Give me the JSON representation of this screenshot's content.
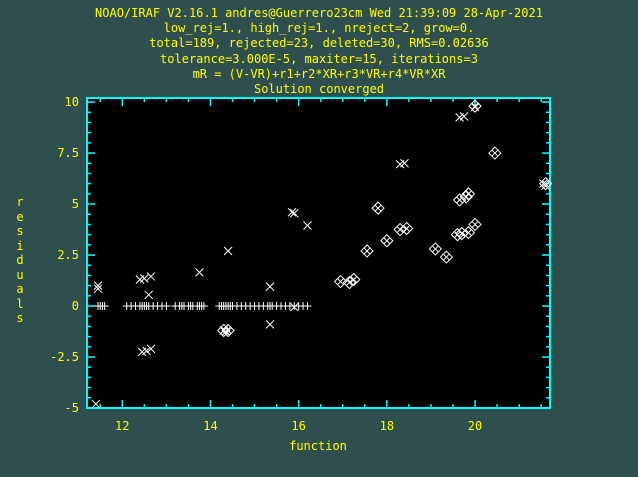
{
  "window": {
    "header_lines": [
      "NOAO/IRAF V2.16.1 andres@Guerrero23cm Wed 21:39:09 28-Apr-2021",
      "low_rej=1., high_rej=1., nreject=2, grow=0.",
      "total=189, rejected=23, deleted=30, RMS=0.02636",
      "tolerance=3.000E-5, maxiter=15, iterations=3",
      "mR = (V-VR)+r1+r2*XR+r3*VR+r4*VR*XR",
      "Solution converged"
    ]
  },
  "colors": {
    "background": "#2f4f4f",
    "frame": "#00ffff",
    "text": "#ffff00",
    "points": "#ffffff",
    "plot_bg": "#000000"
  },
  "chart_data": {
    "type": "scatter",
    "xlabel": "function",
    "ylabel": "residuals",
    "xlim": [
      11.2,
      21.7
    ],
    "ylim": [
      -5.0,
      10.2
    ],
    "x_ticks": [
      12,
      14,
      16,
      18,
      20
    ],
    "x_tick_labels": [
      "12",
      "14",
      "16",
      "18",
      "20"
    ],
    "y_ticks": [
      -5,
      -2.5,
      0,
      2.5,
      5,
      7.5,
      10
    ],
    "y_tick_labels": [
      "-5",
      "-2.5",
      "0",
      "2.5",
      "5",
      "7.5",
      "10"
    ],
    "series": [
      {
        "marker": "plus",
        "points": [
          [
            11.45,
            0
          ],
          [
            11.5,
            0
          ],
          [
            11.55,
            0
          ],
          [
            11.6,
            0
          ],
          [
            12.1,
            0
          ],
          [
            12.2,
            0
          ],
          [
            12.3,
            0
          ],
          [
            12.4,
            0
          ],
          [
            12.45,
            0
          ],
          [
            12.5,
            0
          ],
          [
            12.55,
            0
          ],
          [
            12.6,
            0
          ],
          [
            12.7,
            0
          ],
          [
            12.8,
            0
          ],
          [
            12.9,
            0
          ],
          [
            13.0,
            0
          ],
          [
            13.2,
            0
          ],
          [
            13.3,
            0
          ],
          [
            13.35,
            0
          ],
          [
            13.4,
            0
          ],
          [
            13.5,
            0
          ],
          [
            13.55,
            0
          ],
          [
            13.6,
            0
          ],
          [
            13.7,
            0
          ],
          [
            13.75,
            0
          ],
          [
            13.8,
            0
          ],
          [
            13.85,
            0
          ],
          [
            14.2,
            0
          ],
          [
            14.25,
            0
          ],
          [
            14.3,
            0
          ],
          [
            14.35,
            0
          ],
          [
            14.4,
            0
          ],
          [
            14.45,
            0
          ],
          [
            14.5,
            0
          ],
          [
            14.6,
            0
          ],
          [
            14.7,
            0
          ],
          [
            14.8,
            0
          ],
          [
            14.9,
            0
          ],
          [
            15.0,
            0
          ],
          [
            15.1,
            0
          ],
          [
            15.2,
            0
          ],
          [
            15.3,
            0
          ],
          [
            15.35,
            0
          ],
          [
            15.4,
            0
          ],
          [
            15.5,
            0
          ],
          [
            15.6,
            0
          ],
          [
            15.7,
            0
          ],
          [
            15.8,
            0
          ],
          [
            15.9,
            0
          ],
          [
            16.0,
            0
          ],
          [
            16.1,
            0
          ],
          [
            16.2,
            0
          ]
        ]
      },
      {
        "marker": "cross",
        "points": [
          [
            11.4,
            -4.8
          ],
          [
            11.45,
            1.0
          ],
          [
            11.45,
            0.85
          ],
          [
            12.4,
            1.3
          ],
          [
            12.5,
            1.35
          ],
          [
            12.65,
            1.45
          ],
          [
            12.6,
            0.55
          ],
          [
            12.45,
            -2.25
          ],
          [
            12.55,
            -2.2
          ],
          [
            12.65,
            -2.1
          ],
          [
            13.75,
            1.65
          ],
          [
            14.4,
            2.7
          ],
          [
            15.35,
            0.95
          ],
          [
            15.35,
            -0.9
          ],
          [
            15.85,
            4.6
          ],
          [
            15.9,
            4.55
          ],
          [
            16.2,
            3.95
          ],
          [
            18.3,
            6.95
          ],
          [
            18.4,
            7.0
          ],
          [
            19.65,
            9.25
          ],
          [
            19.75,
            9.3
          ],
          [
            20.0,
            9.75
          ],
          [
            21.55,
            6.0
          ],
          [
            21.6,
            5.9
          ],
          [
            14.3,
            -1.2
          ],
          [
            14.35,
            -1.25
          ],
          [
            15.9,
            -0.05
          ]
        ]
      },
      {
        "marker": "diamond-cross",
        "points": [
          [
            14.3,
            -1.2
          ],
          [
            14.4,
            -1.2
          ],
          [
            16.95,
            1.2
          ],
          [
            17.15,
            1.15
          ],
          [
            17.25,
            1.3
          ],
          [
            17.55,
            2.7
          ],
          [
            17.8,
            4.8
          ],
          [
            18.0,
            3.2
          ],
          [
            18.3,
            3.75
          ],
          [
            18.45,
            3.8
          ],
          [
            19.1,
            2.8
          ],
          [
            19.35,
            2.4
          ],
          [
            19.6,
            3.5
          ],
          [
            19.7,
            3.55
          ],
          [
            19.65,
            5.2
          ],
          [
            19.8,
            5.35
          ],
          [
            19.85,
            5.5
          ],
          [
            19.85,
            3.6
          ],
          [
            20.0,
            4.0
          ],
          [
            20.0,
            9.8
          ],
          [
            20.45,
            7.5
          ],
          [
            21.6,
            6.0
          ]
        ]
      }
    ]
  }
}
